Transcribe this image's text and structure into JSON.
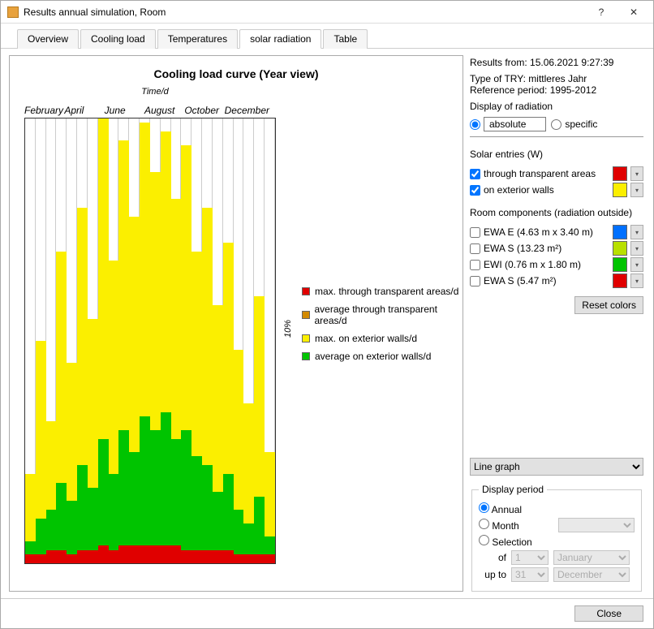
{
  "window": {
    "title": "Results annual simulation, Room"
  },
  "tabs": [
    "Overview",
    "Cooling load",
    "Temperatures",
    "solar radiation",
    "Table"
  ],
  "tabs_active_index": 3,
  "chart": {
    "type": "bar",
    "title": "Cooling load curve (Year view)",
    "x_label": "Time/d",
    "y_label": "10%",
    "months": [
      "February",
      "April",
      "June",
      "August",
      "October",
      "December"
    ],
    "grid_divisions": 24,
    "background_color": "#ffffff",
    "grid_color": "#cccccc",
    "legend": [
      {
        "color": "#e00000",
        "label": "max. through transparent areas/d"
      },
      {
        "color": "#d28a00",
        "label": "average through transparent areas/d"
      },
      {
        "color": "#fbef00",
        "label": "max. on exterior walls/d"
      },
      {
        "color": "#00c400",
        "label": "average on exterior walls/d"
      }
    ],
    "series_colors": {
      "yellow": "#fbef00",
      "green": "#00c400",
      "orange": "#d28a00",
      "red": "#e00000"
    },
    "columns": [
      {
        "yellow": 20,
        "green": 5,
        "red": 2,
        "orange": 1
      },
      {
        "yellow": 50,
        "green": 10,
        "red": 2,
        "orange": 1
      },
      {
        "yellow": 32,
        "green": 12,
        "red": 3,
        "orange": 1
      },
      {
        "yellow": 70,
        "green": 18,
        "red": 3,
        "orange": 2
      },
      {
        "yellow": 45,
        "green": 14,
        "red": 2,
        "orange": 1
      },
      {
        "yellow": 80,
        "green": 22,
        "red": 3,
        "orange": 2
      },
      {
        "yellow": 55,
        "green": 17,
        "red": 3,
        "orange": 1
      },
      {
        "yellow": 100,
        "green": 28,
        "red": 4,
        "orange": 2
      },
      {
        "yellow": 68,
        "green": 20,
        "red": 3,
        "orange": 2
      },
      {
        "yellow": 95,
        "green": 30,
        "red": 4,
        "orange": 2
      },
      {
        "yellow": 78,
        "green": 25,
        "red": 4,
        "orange": 2
      },
      {
        "yellow": 99,
        "green": 33,
        "red": 4,
        "orange": 2
      },
      {
        "yellow": 88,
        "green": 30,
        "red": 4,
        "orange": 2
      },
      {
        "yellow": 97,
        "green": 34,
        "red": 4,
        "orange": 2
      },
      {
        "yellow": 82,
        "green": 28,
        "red": 4,
        "orange": 2
      },
      {
        "yellow": 94,
        "green": 30,
        "red": 3,
        "orange": 2
      },
      {
        "yellow": 70,
        "green": 24,
        "red": 3,
        "orange": 2
      },
      {
        "yellow": 80,
        "green": 22,
        "red": 3,
        "orange": 1
      },
      {
        "yellow": 58,
        "green": 16,
        "red": 3,
        "orange": 1
      },
      {
        "yellow": 72,
        "green": 20,
        "red": 3,
        "orange": 1
      },
      {
        "yellow": 48,
        "green": 12,
        "red": 2,
        "orange": 1
      },
      {
        "yellow": 36,
        "green": 9,
        "red": 2,
        "orange": 1
      },
      {
        "yellow": 60,
        "green": 15,
        "red": 2,
        "orange": 1
      },
      {
        "yellow": 25,
        "green": 6,
        "red": 2,
        "orange": 1
      }
    ]
  },
  "side": {
    "results_from_label": "Results from:",
    "results_from_value": "15.06.2021 9:27:39",
    "try_label": "Type of TRY:",
    "try_value": "mittleres Jahr",
    "ref_label": "Reference period:",
    "ref_value": "1995-2012",
    "display_label": "Display of radiation",
    "radio_absolute": "absolute",
    "radio_specific": "specific",
    "solar_label": "Solar entries (W)",
    "solar_items": [
      {
        "label": "through transparent areas",
        "checked": true,
        "color": "#e00000"
      },
      {
        "label": "on exterior walls",
        "checked": true,
        "color": "#fbef00"
      }
    ],
    "room_label": "Room components (radiation outside)",
    "room_items": [
      {
        "label": "EWA E (4.63 m x 3.40 m)",
        "checked": false,
        "color": "#0070ff"
      },
      {
        "label": "EWA S (13.23 m²)",
        "checked": false,
        "color": "#b8e000"
      },
      {
        "label": "EWI (0.76 m x 1.80 m)",
        "checked": false,
        "color": "#00c400"
      },
      {
        "label": "EWA S (5.47 m²)",
        "checked": false,
        "color": "#e00000"
      }
    ],
    "reset_label": "Reset colors",
    "graph_type_options": [
      "Line graph"
    ],
    "graph_type_selected": "Line graph",
    "period": {
      "legend": "Display period",
      "annual": "Annual",
      "month": "Month",
      "selection": "Selection",
      "of": "of",
      "up_to": "up to",
      "from_day": "1",
      "from_month": "January",
      "to_day": "31",
      "to_month": "December"
    }
  },
  "footer": {
    "close": "Close"
  }
}
